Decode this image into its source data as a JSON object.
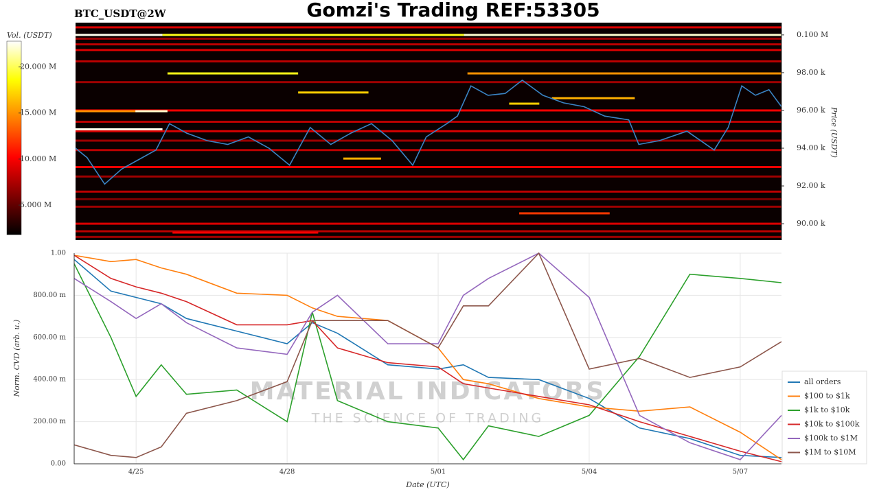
{
  "chart_data": [
    {
      "type": "heatmap",
      "title": "Gomzi's Trading REF:53305",
      "subtitle": "BTC_USDT@2W",
      "ylabel": "Price (USDT)",
      "colorbar_label": "Vol. (USDT)",
      "xlim": [
        23.77,
        37.82
      ],
      "ylim": [
        89130,
        100650
      ],
      "yticks": [
        {
          "value": 90000,
          "label": "90.00 k"
        },
        {
          "value": 92000,
          "label": "92.00 k"
        },
        {
          "value": 94000,
          "label": "94.00 k"
        },
        {
          "value": 96000,
          "label": "96.00 k"
        },
        {
          "value": 98000,
          "label": "98.00 k"
        },
        {
          "value": 100000,
          "label": "0.100 M"
        }
      ],
      "clim": [
        1800000,
        22800000
      ],
      "cticks": [
        {
          "value": 5000000,
          "label": "5.000 M"
        },
        {
          "value": 10000000,
          "label": "10.000 M"
        },
        {
          "value": 15000000,
          "label": "15.000 M"
        },
        {
          "value": 20000000,
          "label": "20.000 M"
        }
      ],
      "levels": {
        "price": [
          100400,
          99800,
          99500,
          99200,
          98600,
          97500,
          96000,
          95400,
          94900,
          94400,
          93900,
          93000,
          92500,
          91700,
          91300,
          90900,
          90000,
          89600,
          89300
        ],
        "volume": [
          9000000,
          7000000,
          8000000,
          9000000,
          8000000,
          7000000,
          10000000,
          8000000,
          9000000,
          7000000,
          8000000,
          10000000,
          7000000,
          8000000,
          6000000,
          7000000,
          9000000,
          8000000,
          7000000
        ]
      },
      "orders": [
        {
          "x": [
            23.77,
            25.5
          ],
          "price": 100000,
          "volume": 22500000
        },
        {
          "x": [
            25.5,
            31.5
          ],
          "price": 100000,
          "volume": 19000000
        },
        {
          "x": [
            31.5,
            37.82
          ],
          "price": 100000,
          "volume": 22000000
        },
        {
          "x": [
            23.77,
            25.5
          ],
          "price": 95000,
          "volume": 22500000
        },
        {
          "x": [
            24.96,
            25.6
          ],
          "price": 95960,
          "volume": 22000000
        },
        {
          "x": [
            23.77,
            24.96
          ],
          "price": 95960,
          "volume": 15000000
        },
        {
          "x": [
            25.6,
            28.2
          ],
          "price": 97960,
          "volume": 19000000
        },
        {
          "x": [
            31.57,
            37.82
          ],
          "price": 97960,
          "volume": 15000000
        },
        {
          "x": [
            28.2,
            29.6
          ],
          "price": 96950,
          "volume": 17000000
        },
        {
          "x": [
            29.1,
            29.85
          ],
          "price": 93450,
          "volume": 16000000
        },
        {
          "x": [
            32.4,
            33.0
          ],
          "price": 96360,
          "volume": 17000000
        },
        {
          "x": [
            33.25,
            34.9
          ],
          "price": 96650,
          "volume": 16000000
        },
        {
          "x": [
            32.6,
            34.4
          ],
          "price": 90550,
          "volume": 12000000
        },
        {
          "x": [
            25.7,
            28.6
          ],
          "price": 89530,
          "volume": 10000000
        }
      ],
      "series": [
        {
          "color": "#3a84c4",
          "x": [
            23.77,
            24.0,
            24.35,
            24.69,
            25.03,
            25.37,
            25.64,
            25.98,
            26.39,
            26.8,
            27.21,
            27.62,
            28.03,
            28.44,
            28.85,
            29.25,
            29.66,
            30.07,
            30.48,
            30.75,
            31.16,
            31.37,
            31.64,
            31.98,
            32.32,
            32.66,
            33.07,
            33.48,
            33.89,
            34.3,
            34.78,
            34.98,
            35.39,
            35.94,
            36.48,
            36.76,
            37.03,
            37.3,
            37.57,
            37.82
          ],
          "values": [
            94000,
            93500,
            92100,
            92900,
            93400,
            93900,
            95300,
            94800,
            94400,
            94200,
            94600,
            94000,
            93100,
            95100,
            94200,
            94800,
            95300,
            94400,
            93100,
            94600,
            95300,
            95700,
            97300,
            96800,
            96900,
            97600,
            96800,
            96400,
            96200,
            95700,
            95500,
            94200,
            94400,
            94900,
            93900,
            95100,
            97300,
            96800,
            97100,
            96200
          ]
        }
      ]
    },
    {
      "type": "line",
      "ylabel": "Norm. CVD (arb. u.)",
      "xlabel": "Date (UTC)",
      "xlim": [
        23.77,
        37.82
      ],
      "ylim": [
        0,
        1
      ],
      "xticks": [
        {
          "value": 25,
          "label": "4/25"
        },
        {
          "value": 28,
          "label": "4/28"
        },
        {
          "value": 31,
          "label": "5/01"
        },
        {
          "value": 34,
          "label": "5/04"
        },
        {
          "value": 37,
          "label": "5/07"
        }
      ],
      "yticks": [
        {
          "value": 0,
          "label": "0.00"
        },
        {
          "value": 0.2,
          "label": "200.00 m"
        },
        {
          "value": 0.4,
          "label": "400.00 m"
        },
        {
          "value": 0.6,
          "label": "600.00 m"
        },
        {
          "value": 0.8,
          "label": "800.00 m"
        },
        {
          "value": 1,
          "label": "1.00"
        }
      ],
      "grid": true,
      "legend": "lower right",
      "watermark": [
        "MATERIAL INDICATORS",
        "THE SCIENCE OF TRADING"
      ],
      "x": [
        23.77,
        24.5,
        25,
        25.5,
        26,
        27,
        28,
        28.5,
        29,
        30,
        31,
        31.5,
        32,
        33,
        34,
        35,
        36,
        37,
        37.82
      ],
      "series": [
        {
          "name": "all orders",
          "color": "#1f77b4",
          "values": [
            0.97,
            0.82,
            0.79,
            0.76,
            0.69,
            0.63,
            0.57,
            0.67,
            0.62,
            0.47,
            0.45,
            0.47,
            0.41,
            0.4,
            0.31,
            0.17,
            0.12,
            0.04,
            0.03
          ]
        },
        {
          "name": "$100 to $1k",
          "color": "#ff7f0e",
          "values": [
            0.99,
            0.96,
            0.97,
            0.93,
            0.9,
            0.81,
            0.8,
            0.74,
            0.7,
            0.68,
            0.55,
            0.4,
            0.38,
            0.31,
            0.27,
            0.25,
            0.27,
            0.15,
            0.02
          ]
        },
        {
          "name": "$1k to $10k",
          "color": "#2ca02c",
          "values": [
            0.95,
            0.6,
            0.32,
            0.47,
            0.33,
            0.35,
            0.2,
            0.72,
            0.3,
            0.2,
            0.17,
            0.02,
            0.18,
            0.13,
            0.23,
            0.51,
            0.9,
            0.88,
            0.86
          ]
        },
        {
          "name": "$10k to $100k",
          "color": "#d62728",
          "values": [
            0.99,
            0.88,
            0.84,
            0.81,
            0.77,
            0.66,
            0.66,
            0.68,
            0.55,
            0.48,
            0.46,
            0.38,
            0.36,
            0.32,
            0.28,
            0.2,
            0.13,
            0.06,
            0.01
          ]
        },
        {
          "name": "$100k to $1M",
          "color": "#9467bd",
          "values": [
            0.88,
            0.77,
            0.69,
            0.76,
            0.67,
            0.55,
            0.52,
            0.72,
            0.8,
            0.57,
            0.57,
            0.8,
            0.88,
            1.0,
            0.79,
            0.23,
            0.1,
            0.02,
            0.23
          ]
        },
        {
          "name": "$1M to $10M",
          "color": "#8c564b",
          "values": [
            0.09,
            0.04,
            0.03,
            0.08,
            0.24,
            0.3,
            0.39,
            0.68,
            0.68,
            0.68,
            0.55,
            0.75,
            0.75,
            1.0,
            0.45,
            0.5,
            0.41,
            0.46,
            0.58
          ]
        }
      ]
    }
  ]
}
